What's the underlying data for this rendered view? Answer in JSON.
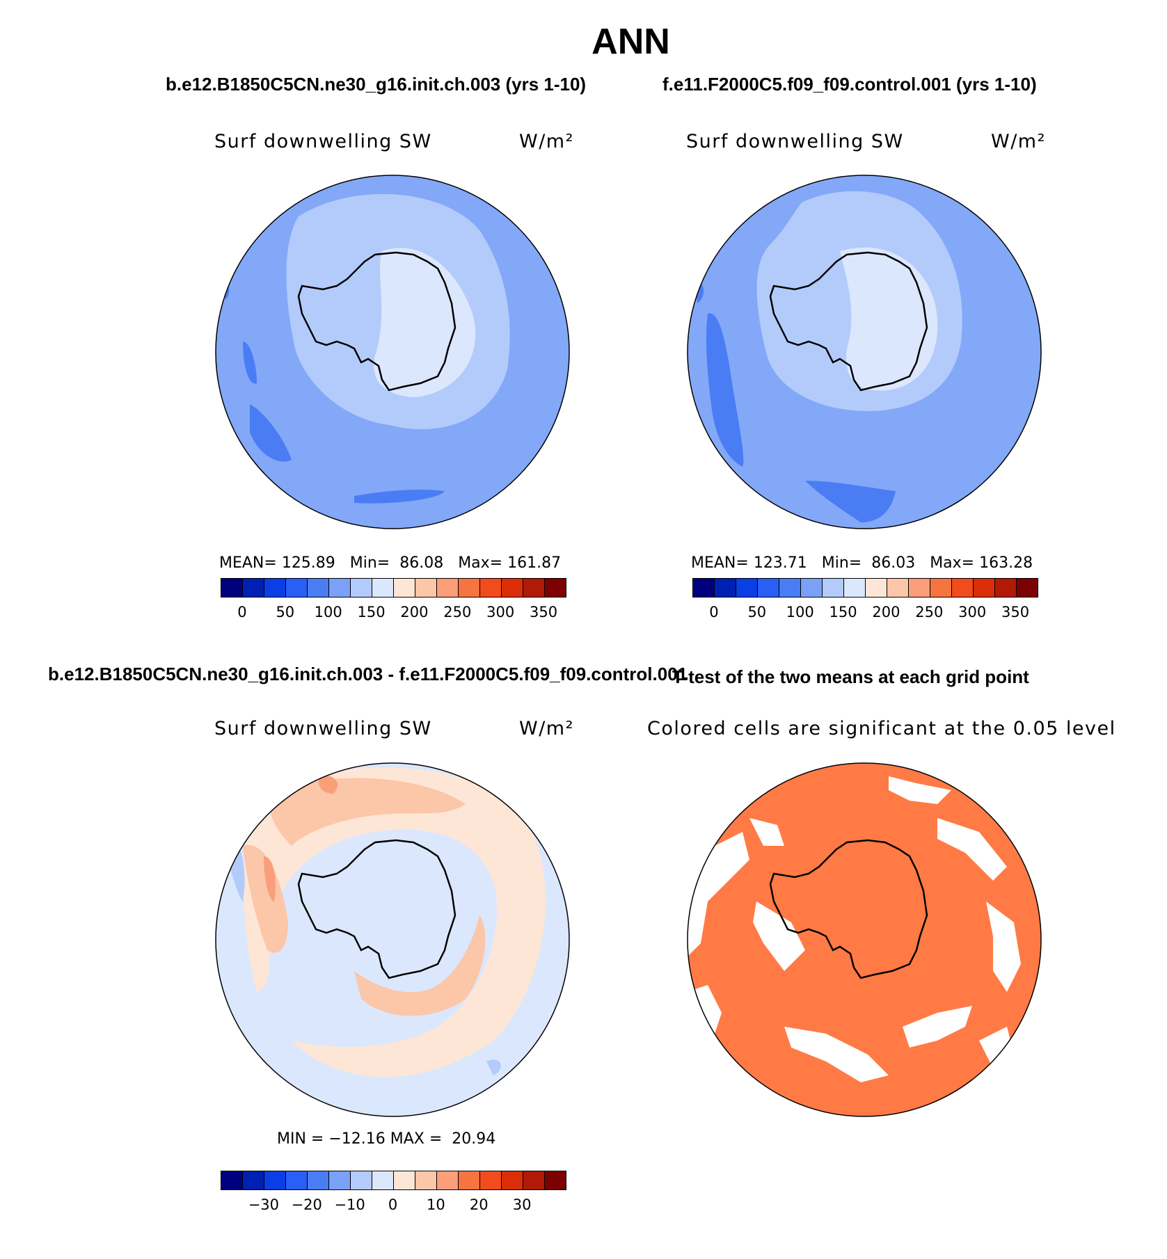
{
  "title": "ANN",
  "case1": "b.e12.B1850C5CN.ne30_g16.init.ch.003 (yrs 1-10)",
  "case2": "f.e11.F2000C5.f09_f09.control.001 (yrs 1-10)",
  "diff_title": "b.e12.B1850C5CN.ne30_g16.init.ch.003 - f.e11.F2000C5.f09_f09.control.001",
  "ttest_title": "T-test of the two means at each grid point",
  "ttest_subtitle": "Colored cells are significant at the 0.05 level",
  "variable": "Surf downwelling SW",
  "units": "W/m²",
  "colors": {
    "abs_scale": [
      "#00007f",
      "#0020b4",
      "#0a3fe6",
      "#2a5ff5",
      "#4a7cf4",
      "#7aa1f7",
      "#b3cbfb",
      "#dbe7fc",
      "#fde6d6",
      "#fcc6a8",
      "#fa9f7a",
      "#f6743f",
      "#f14c1c",
      "#db2e08",
      "#b11a06",
      "#7d0002"
    ],
    "diff_scale": [
      "#00007f",
      "#0020b4",
      "#0a3fe6",
      "#2a5ff5",
      "#4a7cf4",
      "#7aa1f7",
      "#b3cbfb",
      "#dbe7fc",
      "#fde6d6",
      "#fcc6a8",
      "#fa9f7a",
      "#f6743f",
      "#f14c1c",
      "#db2e08",
      "#b11a06",
      "#7d0002"
    ],
    "significant": "#ff7a45"
  },
  "chart_data": [
    {
      "type": "heatmap",
      "projection": "south-polar-stereographic",
      "title": "b.e12.B1850C5CN.ne30_g16.init.ch.003 (yrs 1-10)",
      "left_label": "Surf downwelling SW",
      "right_label": "W/m²",
      "stats": {
        "mean": "125.89",
        "min": "86.08",
        "max": "161.87"
      },
      "stats_text": "MEAN= 125.89   Min=  86.08   Max= 161.87",
      "colorbar_ticks": [
        "0",
        "50",
        "100",
        "150",
        "200",
        "250",
        "300",
        "350"
      ],
      "levels": [
        0,
        25,
        50,
        75,
        100,
        125,
        150,
        175,
        200,
        225,
        250,
        275,
        300,
        325,
        350
      ]
    },
    {
      "type": "heatmap",
      "projection": "south-polar-stereographic",
      "title": "f.e11.F2000C5.f09_f09.control.001 (yrs 1-10)",
      "left_label": "Surf downwelling SW",
      "right_label": "W/m²",
      "stats": {
        "mean": "123.71",
        "min": "86.03",
        "max": "163.28"
      },
      "stats_text": "MEAN= 123.71   Min=  86.03   Max= 163.28",
      "colorbar_ticks": [
        "0",
        "50",
        "100",
        "150",
        "200",
        "250",
        "300",
        "350"
      ],
      "levels": [
        0,
        25,
        50,
        75,
        100,
        125,
        150,
        175,
        200,
        225,
        250,
        275,
        300,
        325,
        350
      ]
    },
    {
      "type": "heatmap",
      "projection": "south-polar-stereographic",
      "title": "b.e12.B1850C5CN.ne30_g16.init.ch.003 - f.e11.F2000C5.f09_f09.control.001",
      "left_label": "Surf downwelling SW",
      "right_label": "W/m²",
      "stats": {
        "min": "-12.16",
        "max": "20.94"
      },
      "stats_text": "MIN = −12.16 MAX =  20.94",
      "colorbar_ticks": [
        "−30",
        "−20",
        "−10",
        "0",
        "10",
        "20",
        "30"
      ],
      "levels": [
        -35,
        -30,
        -25,
        -20,
        -15,
        -10,
        -5,
        0,
        5,
        10,
        15,
        20,
        25,
        30,
        35
      ]
    },
    {
      "type": "heatmap",
      "projection": "south-polar-stereographic",
      "title": "T-test of the two means at each grid point",
      "left_label": "Colored cells are significant at the 0.05 level",
      "significance_level": 0.05
    }
  ]
}
